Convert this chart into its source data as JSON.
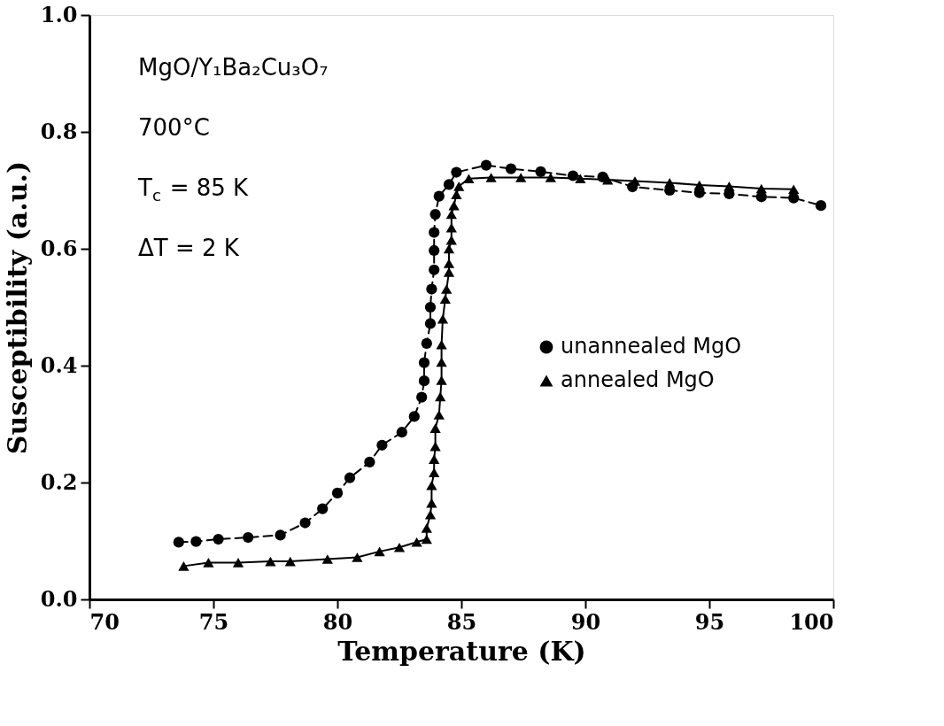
{
  "chart_data": {
    "type": "line",
    "xlabel": "Temperature (K)",
    "ylabel": "Susceptibility (a.u.)",
    "annotations": [
      "MgO/Y₁Ba₂Cu₃O₇",
      "700°C",
      "T$_{c}$ = 85 K",
      "ΔT = 2 K"
    ],
    "xlim": [
      70,
      100
    ],
    "xticks": [
      70,
      75,
      80,
      85,
      90,
      95,
      100
    ],
    "ylim": [
      0,
      1
    ],
    "yticks": [
      {
        "value": 0,
        "label": "0.0"
      },
      0.2,
      0.4,
      0.6,
      0.8,
      {
        "value": 1,
        "label": "1.0"
      }
    ],
    "grid": false,
    "legend": "right",
    "series": [
      {
        "name": "unannealed MgO",
        "color": "#000000",
        "marker": "circle",
        "line_style": "dashed",
        "x": [
          73.6,
          74.3,
          75.2,
          76.4,
          77.7,
          78.7,
          79.4,
          80.0,
          80.5,
          81.3,
          81.8,
          82.6,
          83.1,
          83.4,
          83.5,
          83.5,
          83.6,
          83.75,
          83.75,
          83.8,
          83.9,
          83.9,
          83.9,
          83.95,
          84.1,
          84.5,
          84.8,
          86.0,
          87.0,
          88.2,
          89.5,
          90.7,
          91.9,
          93.4,
          94.6,
          95.8,
          97.1,
          98.4,
          99.5
        ],
        "values": [
          0.098,
          0.099,
          0.103,
          0.106,
          0.11,
          0.131,
          0.155,
          0.182,
          0.208,
          0.235,
          0.264,
          0.286,
          0.313,
          0.346,
          0.374,
          0.405,
          0.438,
          0.472,
          0.5,
          0.531,
          0.564,
          0.597,
          0.628,
          0.659,
          0.69,
          0.71,
          0.731,
          0.743,
          0.737,
          0.732,
          0.725,
          0.723,
          0.706,
          0.7,
          0.696,
          0.694,
          0.689,
          0.687,
          0.674
        ]
      },
      {
        "name": "annealed MgO",
        "color": "#000000",
        "marker": "triangle",
        "line_style": "solid",
        "x": [
          73.8,
          74.8,
          76.0,
          77.3,
          78.1,
          79.6,
          80.8,
          81.7,
          82.5,
          83.2,
          83.6,
          83.6,
          83.75,
          83.8,
          83.8,
          83.9,
          83.9,
          83.95,
          83.95,
          84.1,
          84.15,
          84.2,
          84.2,
          84.2,
          84.25,
          84.35,
          84.4,
          84.5,
          84.5,
          84.5,
          84.6,
          84.6,
          84.6,
          84.7,
          84.8,
          84.9,
          85.3,
          86.2,
          87.4,
          88.6,
          89.8,
          90.9,
          92.0,
          93.4,
          94.6,
          95.8,
          97.1,
          98.4
        ],
        "values": [
          0.057,
          0.063,
          0.063,
          0.065,
          0.065,
          0.069,
          0.072,
          0.082,
          0.089,
          0.098,
          0.103,
          0.122,
          0.145,
          0.165,
          0.195,
          0.217,
          0.24,
          0.262,
          0.293,
          0.316,
          0.347,
          0.375,
          0.406,
          0.436,
          0.48,
          0.514,
          0.531,
          0.56,
          0.575,
          0.6,
          0.615,
          0.636,
          0.659,
          0.674,
          0.693,
          0.707,
          0.72,
          0.722,
          0.722,
          0.722,
          0.72,
          0.718,
          0.716,
          0.713,
          0.709,
          0.707,
          0.703,
          0.702
        ]
      }
    ]
  }
}
